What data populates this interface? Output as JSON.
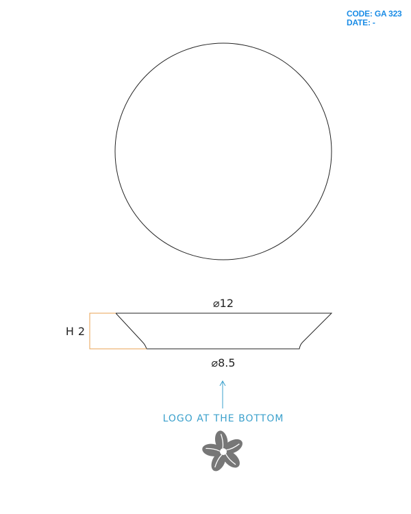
{
  "header": {
    "code_label": "CODE:",
    "code_value": "GA 323",
    "date_label": "DATE:",
    "date_value": "-"
  },
  "dimensions": {
    "top_diameter_symbol": "⌀",
    "top_diameter_value": "12",
    "bottom_diameter_symbol": "⌀",
    "bottom_diameter_value": "8.5",
    "height_label": "H",
    "height_value": "2"
  },
  "note": {
    "text": "LOGO AT THE BOTTOM"
  },
  "colors": {
    "accent_blue": "#1a8ce6",
    "note_blue": "#3aa0cc",
    "height_bracket": "#e8a250",
    "line": "#222222",
    "logo_gray": "#777777"
  },
  "icons": {
    "logo": "flower-logo-icon",
    "arrow": "arrow-up-icon"
  }
}
